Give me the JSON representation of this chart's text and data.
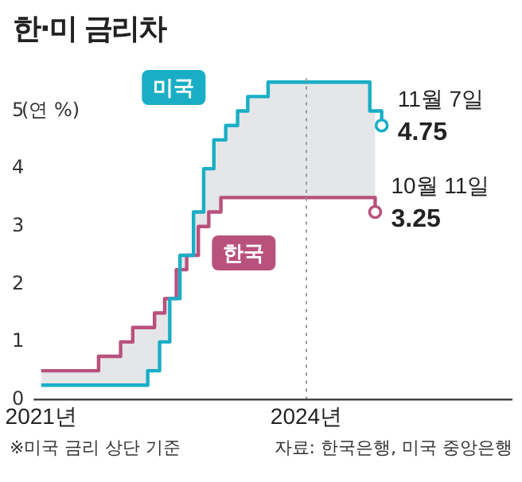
{
  "chart_data": {
    "type": "step",
    "title": "한·미 금리차",
    "ylabel": "(연 %)",
    "series": [
      {
        "name": "미국",
        "color": "#1aaec6",
        "x": [
          "2021-01",
          "2022-03-17",
          "2022-05-05",
          "2022-06-16",
          "2022-07-28",
          "2022-09-22",
          "2022-11-03",
          "2022-12-15",
          "2023-02-02",
          "2023-03-23",
          "2023-05-04",
          "2023-07-27",
          "2024-09-19",
          "2024-11-07"
        ],
        "values": [
          0.25,
          0.5,
          1.0,
          1.75,
          2.5,
          3.25,
          4.0,
          4.5,
          4.75,
          5.0,
          5.25,
          5.5,
          5.0,
          4.75
        ],
        "value_labels": [
          null,
          null,
          null,
          null,
          null,
          null,
          null,
          null,
          null,
          null,
          null,
          null,
          null,
          "4.75"
        ]
      },
      {
        "name": "한국",
        "color": "#b9517d",
        "x": [
          "2021-01",
          "2021-08-26",
          "2021-11-25",
          "2022-01-14",
          "2022-04-14",
          "2022-05-26",
          "2022-07-13",
          "2022-08-25",
          "2022-10-12",
          "2022-11-24",
          "2023-01-13",
          "2024-10-11"
        ],
        "values": [
          0.5,
          0.75,
          1.0,
          1.25,
          1.5,
          1.75,
          2.25,
          2.5,
          3.0,
          3.25,
          3.5,
          3.25
        ],
        "value_labels": [
          null,
          null,
          null,
          null,
          null,
          null,
          null,
          null,
          null,
          null,
          null,
          "3.25"
        ]
      }
    ],
    "xlim": [
      "2020-12",
      "2026-05"
    ],
    "xticks": [
      {
        "value": "2021",
        "label": "2021년"
      },
      {
        "value": "2024",
        "label": "2024년"
      }
    ],
    "ylim": [
      0,
      5.6
    ],
    "yticks": [
      0,
      1,
      2,
      3,
      4,
      5
    ],
    "grid": false,
    "legend": false,
    "ref_lines": [
      {
        "axis": "x",
        "value": "2024",
        "color": "#999999",
        "line_style": "dotted"
      }
    ],
    "annotations": [
      {
        "text": "11월 7일",
        "x": "2024-11-07",
        "y": 4.75
      },
      {
        "text": "10월 11일",
        "x": "2024-10-11",
        "y": 3.25
      },
      "※미국 금리 상단 기준",
      "자료: 한국은행, 미국 중앙은행"
    ]
  }
}
